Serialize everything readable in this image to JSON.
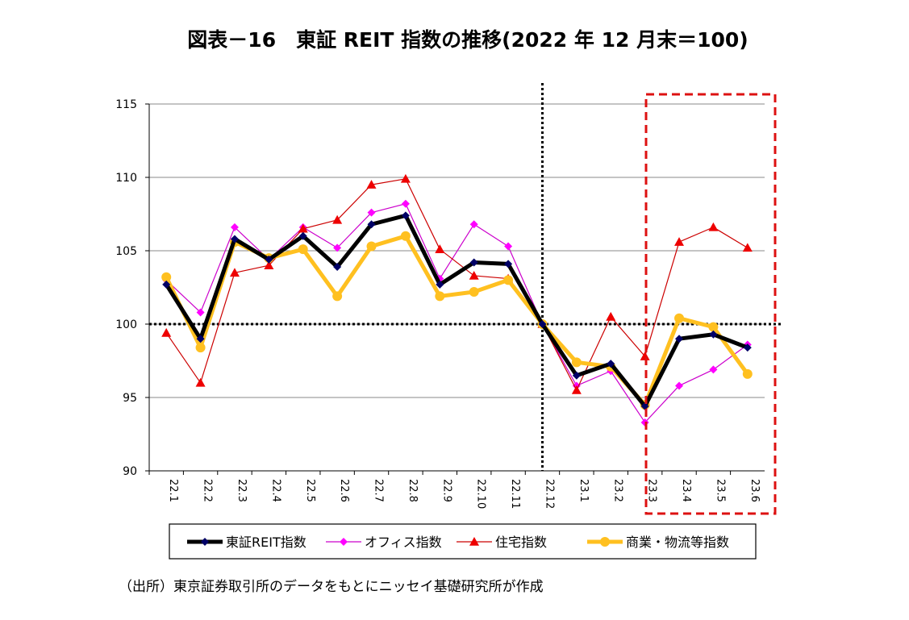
{
  "chart_data": {
    "type": "line",
    "title": "図表－16　東証 REIT 指数の推移(2022 年 12 月末＝100)",
    "source": "（出所）東京証券取引所のデータをもとにニッセイ基礎研究所が作成",
    "categories": [
      "22.1",
      "22.2",
      "22.3",
      "22.4",
      "22.5",
      "22.6",
      "22.7",
      "22.8",
      "22.9",
      "22.10",
      "22.11",
      "22.12",
      "23.1",
      "23.2",
      "23.3",
      "23.4",
      "23.5",
      "23.6"
    ],
    "ylim": [
      90,
      115
    ],
    "yticks": [
      90,
      95,
      100,
      105,
      110,
      115
    ],
    "grid": true,
    "legend_position": "bottom",
    "reference_line_y": 100,
    "reference_line_x": "22.12",
    "highlight_range": [
      "23.3",
      "23.6"
    ],
    "series": [
      {
        "name": "東証REIT指数",
        "color": "#000000",
        "marker": "diamond",
        "marker_color": "#000066",
        "values": [
          102.7,
          99.0,
          105.8,
          104.4,
          106.0,
          103.9,
          106.8,
          107.4,
          102.7,
          104.2,
          104.1,
          100,
          96.5,
          97.3,
          94.4,
          99.0,
          99.3,
          98.4
        ]
      },
      {
        "name": "オフィス指数",
        "color": "#CC00CC",
        "marker": "diamond",
        "marker_color": "#FF00FF",
        "values": [
          103.0,
          100.8,
          106.6,
          104.4,
          106.6,
          105.2,
          107.6,
          108.2,
          103.1,
          106.8,
          105.3,
          100,
          95.8,
          96.8,
          93.3,
          95.8,
          96.9,
          98.6
        ]
      },
      {
        "name": "住宅指数",
        "color": "#CC0000",
        "marker": "triangle",
        "marker_color": "#EE0000",
        "values": [
          99.4,
          96.0,
          103.5,
          104.0,
          106.5,
          107.1,
          109.5,
          109.9,
          105.1,
          103.3,
          103.1,
          100,
          95.5,
          100.5,
          97.8,
          105.6,
          106.6,
          105.2
        ]
      },
      {
        "name": "商業・物流等指数",
        "color": "#FFC020",
        "marker": "circle",
        "marker_color": "#FFC020",
        "values": [
          103.2,
          98.4,
          105.6,
          104.5,
          105.1,
          101.9,
          105.3,
          106.0,
          101.9,
          102.2,
          103.0,
          100,
          97.4,
          97.1,
          94.5,
          100.4,
          99.8,
          96.6
        ]
      }
    ]
  }
}
